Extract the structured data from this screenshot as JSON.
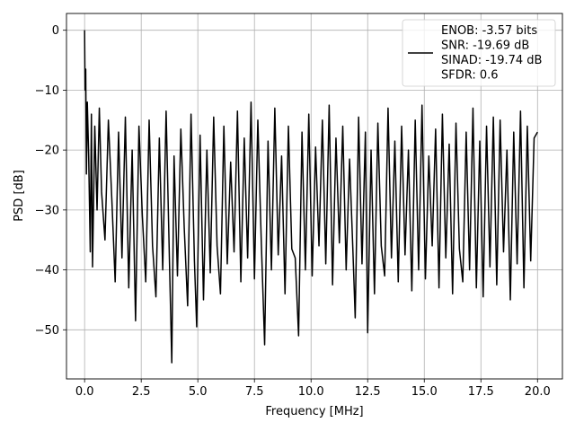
{
  "chart_data": {
    "type": "line",
    "title": "",
    "xlabel": "Frequency [MHz]",
    "ylabel": "PSD [dB]",
    "xlim": [
      -0.8,
      21.1
    ],
    "ylim": [
      -58.2,
      2.8
    ],
    "xticks": [
      0.0,
      2.5,
      5.0,
      7.5,
      10.0,
      12.5,
      15.0,
      17.5,
      20.0
    ],
    "xtick_labels": [
      "0.0",
      "2.5",
      "5.0",
      "7.5",
      "10.0",
      "12.5",
      "15.0",
      "17.5",
      "20.0"
    ],
    "yticks": [
      0,
      -10,
      -20,
      -30,
      -40,
      -50
    ],
    "ytick_labels": [
      "0",
      "−10",
      "−20",
      "−30",
      "−40",
      "−50"
    ],
    "grid": true,
    "legend_position": "top-right",
    "series": [
      {
        "name": "ENOB: -3.57 bits\nSNR: -19.69 dB\nSINAD: -19.74 dB\nSFDR: 0.6",
        "color": "#000000",
        "description": "noisy PSD trace, band between about -12 and -30 dB with deep drops to about -55 dB",
        "x": [
          0.0,
          0.02,
          0.05,
          0.08,
          0.12,
          0.18,
          0.25,
          0.3,
          0.35,
          0.45,
          0.55,
          0.65,
          0.75,
          0.9,
          1.05,
          1.2,
          1.35,
          1.5,
          1.65,
          1.8,
          1.95,
          2.1,
          2.25,
          2.4,
          2.55,
          2.7,
          2.85,
          3.0,
          3.15,
          3.3,
          3.45,
          3.6,
          3.75,
          3.85,
          3.95,
          4.1,
          4.25,
          4.4,
          4.55,
          4.7,
          4.85,
          4.95,
          5.1,
          5.25,
          5.4,
          5.55,
          5.7,
          5.85,
          6.0,
          6.15,
          6.3,
          6.45,
          6.6,
          6.75,
          6.9,
          7.05,
          7.2,
          7.35,
          7.5,
          7.65,
          7.8,
          7.95,
          8.1,
          8.25,
          8.4,
          8.55,
          8.7,
          8.85,
          9.0,
          9.15,
          9.3,
          9.45,
          9.6,
          9.75,
          9.9,
          10.05,
          10.2,
          10.35,
          10.5,
          10.65,
          10.8,
          10.95,
          11.1,
          11.25,
          11.4,
          11.55,
          11.7,
          11.85,
          11.95,
          12.1,
          12.25,
          12.4,
          12.5,
          12.65,
          12.8,
          12.95,
          13.1,
          13.25,
          13.4,
          13.55,
          13.7,
          13.85,
          14.0,
          14.15,
          14.3,
          14.45,
          14.6,
          14.75,
          14.9,
          15.05,
          15.2,
          15.35,
          15.5,
          15.65,
          15.8,
          15.95,
          16.1,
          16.25,
          16.4,
          16.55,
          16.7,
          16.85,
          17.0,
          17.15,
          17.3,
          17.45,
          17.6,
          17.75,
          17.9,
          18.05,
          18.2,
          18.35,
          18.5,
          18.65,
          18.8,
          18.95,
          19.1,
          19.25,
          19.4,
          19.55,
          19.7,
          19.85,
          20.0
        ],
        "y": [
          0.0,
          -10.0,
          -6.5,
          -24.0,
          -12.0,
          -21.0,
          -37.0,
          -14.0,
          -39.5,
          -16.0,
          -30.0,
          -13.0,
          -27.0,
          -35.0,
          -15.0,
          -28.0,
          -42.0,
          -17.0,
          -38.0,
          -14.5,
          -43.0,
          -20.0,
          -48.5,
          -16.0,
          -31.0,
          -42.0,
          -15.0,
          -36.0,
          -44.5,
          -18.0,
          -40.0,
          -13.5,
          -39.0,
          -55.5,
          -21.0,
          -41.0,
          -16.5,
          -33.0,
          -46.0,
          -14.0,
          -38.5,
          -49.5,
          -17.5,
          -45.0,
          -20.0,
          -40.5,
          -14.5,
          -36.0,
          -44.0,
          -16.0,
          -39.0,
          -22.0,
          -37.0,
          -13.5,
          -42.0,
          -18.0,
          -38.0,
          -12.0,
          -41.5,
          -15.0,
          -35.0,
          -52.5,
          -18.5,
          -40.0,
          -13.0,
          -37.5,
          -21.0,
          -44.0,
          -16.0,
          -36.5,
          -38.0,
          -51.0,
          -17.0,
          -40.0,
          -14.0,
          -41.0,
          -19.5,
          -36.0,
          -15.0,
          -39.0,
          -12.5,
          -42.5,
          -18.0,
          -35.5,
          -16.0,
          -40.0,
          -21.5,
          -37.0,
          -48.0,
          -14.5,
          -39.0,
          -17.0,
          -50.5,
          -20.0,
          -44.0,
          -15.5,
          -36.0,
          -41.0,
          -13.0,
          -38.0,
          -18.5,
          -42.0,
          -16.0,
          -37.5,
          -20.0,
          -43.5,
          -15.0,
          -40.0,
          -12.5,
          -41.5,
          -21.0,
          -36.0,
          -16.5,
          -43.0,
          -14.0,
          -38.0,
          -19.0,
          -44.0,
          -15.5,
          -36.5,
          -42.0,
          -17.0,
          -40.0,
          -13.0,
          -43.0,
          -18.5,
          -44.5,
          -16.0,
          -39.5,
          -14.5,
          -42.5,
          -15.0,
          -37.0,
          -20.0,
          -45.0,
          -17.0,
          -39.0,
          -13.5,
          -43.0,
          -16.0,
          -38.5,
          -18.0,
          -17.0
        ]
      }
    ]
  }
}
